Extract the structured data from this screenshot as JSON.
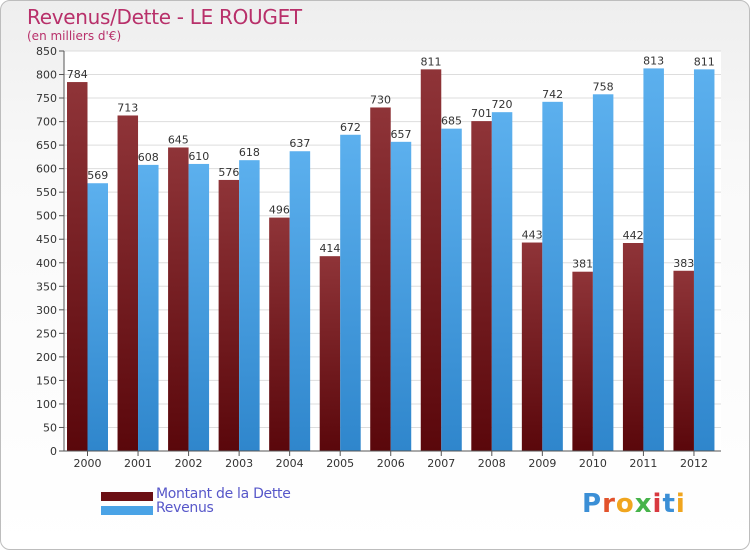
{
  "header": {
    "title": "Revenus/Dette - LE ROUGET",
    "subtitle": "(en milliers d'€)"
  },
  "legend": {
    "items": [
      {
        "label": "Montant de la Dette",
        "color": "#6b0f14"
      },
      {
        "label": "Revenus",
        "color": "#4aa3e6"
      }
    ]
  },
  "logo": {
    "text": "Proxiti",
    "letter_colors": [
      "#3b8fd6",
      "#e2522b",
      "#f0a51e",
      "#46b34a",
      "#d8383f",
      "#3b8fd6",
      "#f0a51e"
    ]
  },
  "chart_data": {
    "type": "bar",
    "title": "Revenus/Dette - LE ROUGET",
    "subtitle": "(en milliers d'€)",
    "categories": [
      "2000",
      "2001",
      "2002",
      "2003",
      "2004",
      "2005",
      "2006",
      "2007",
      "2008",
      "2009",
      "2010",
      "2011",
      "2012"
    ],
    "series": [
      {
        "name": "Montant de la Dette",
        "color": "#6b0f14",
        "values": [
          784,
          713,
          645,
          576,
          496,
          414,
          730,
          811,
          701,
          443,
          381,
          442,
          383
        ]
      },
      {
        "name": "Revenus",
        "color": "#4aa3e6",
        "values": [
          569,
          608,
          610,
          618,
          637,
          672,
          657,
          685,
          720,
          742,
          758,
          813,
          811
        ]
      }
    ],
    "ylim": [
      0,
      850
    ],
    "ytick_step": 50,
    "yticks": [
      "0",
      "50",
      "100",
      "150",
      "200",
      "250",
      "300",
      "350",
      "400",
      "450",
      "500",
      "550",
      "600",
      "650",
      "700",
      "750",
      "800",
      "850"
    ],
    "grid": true,
    "legend_position": "bottom-left"
  }
}
